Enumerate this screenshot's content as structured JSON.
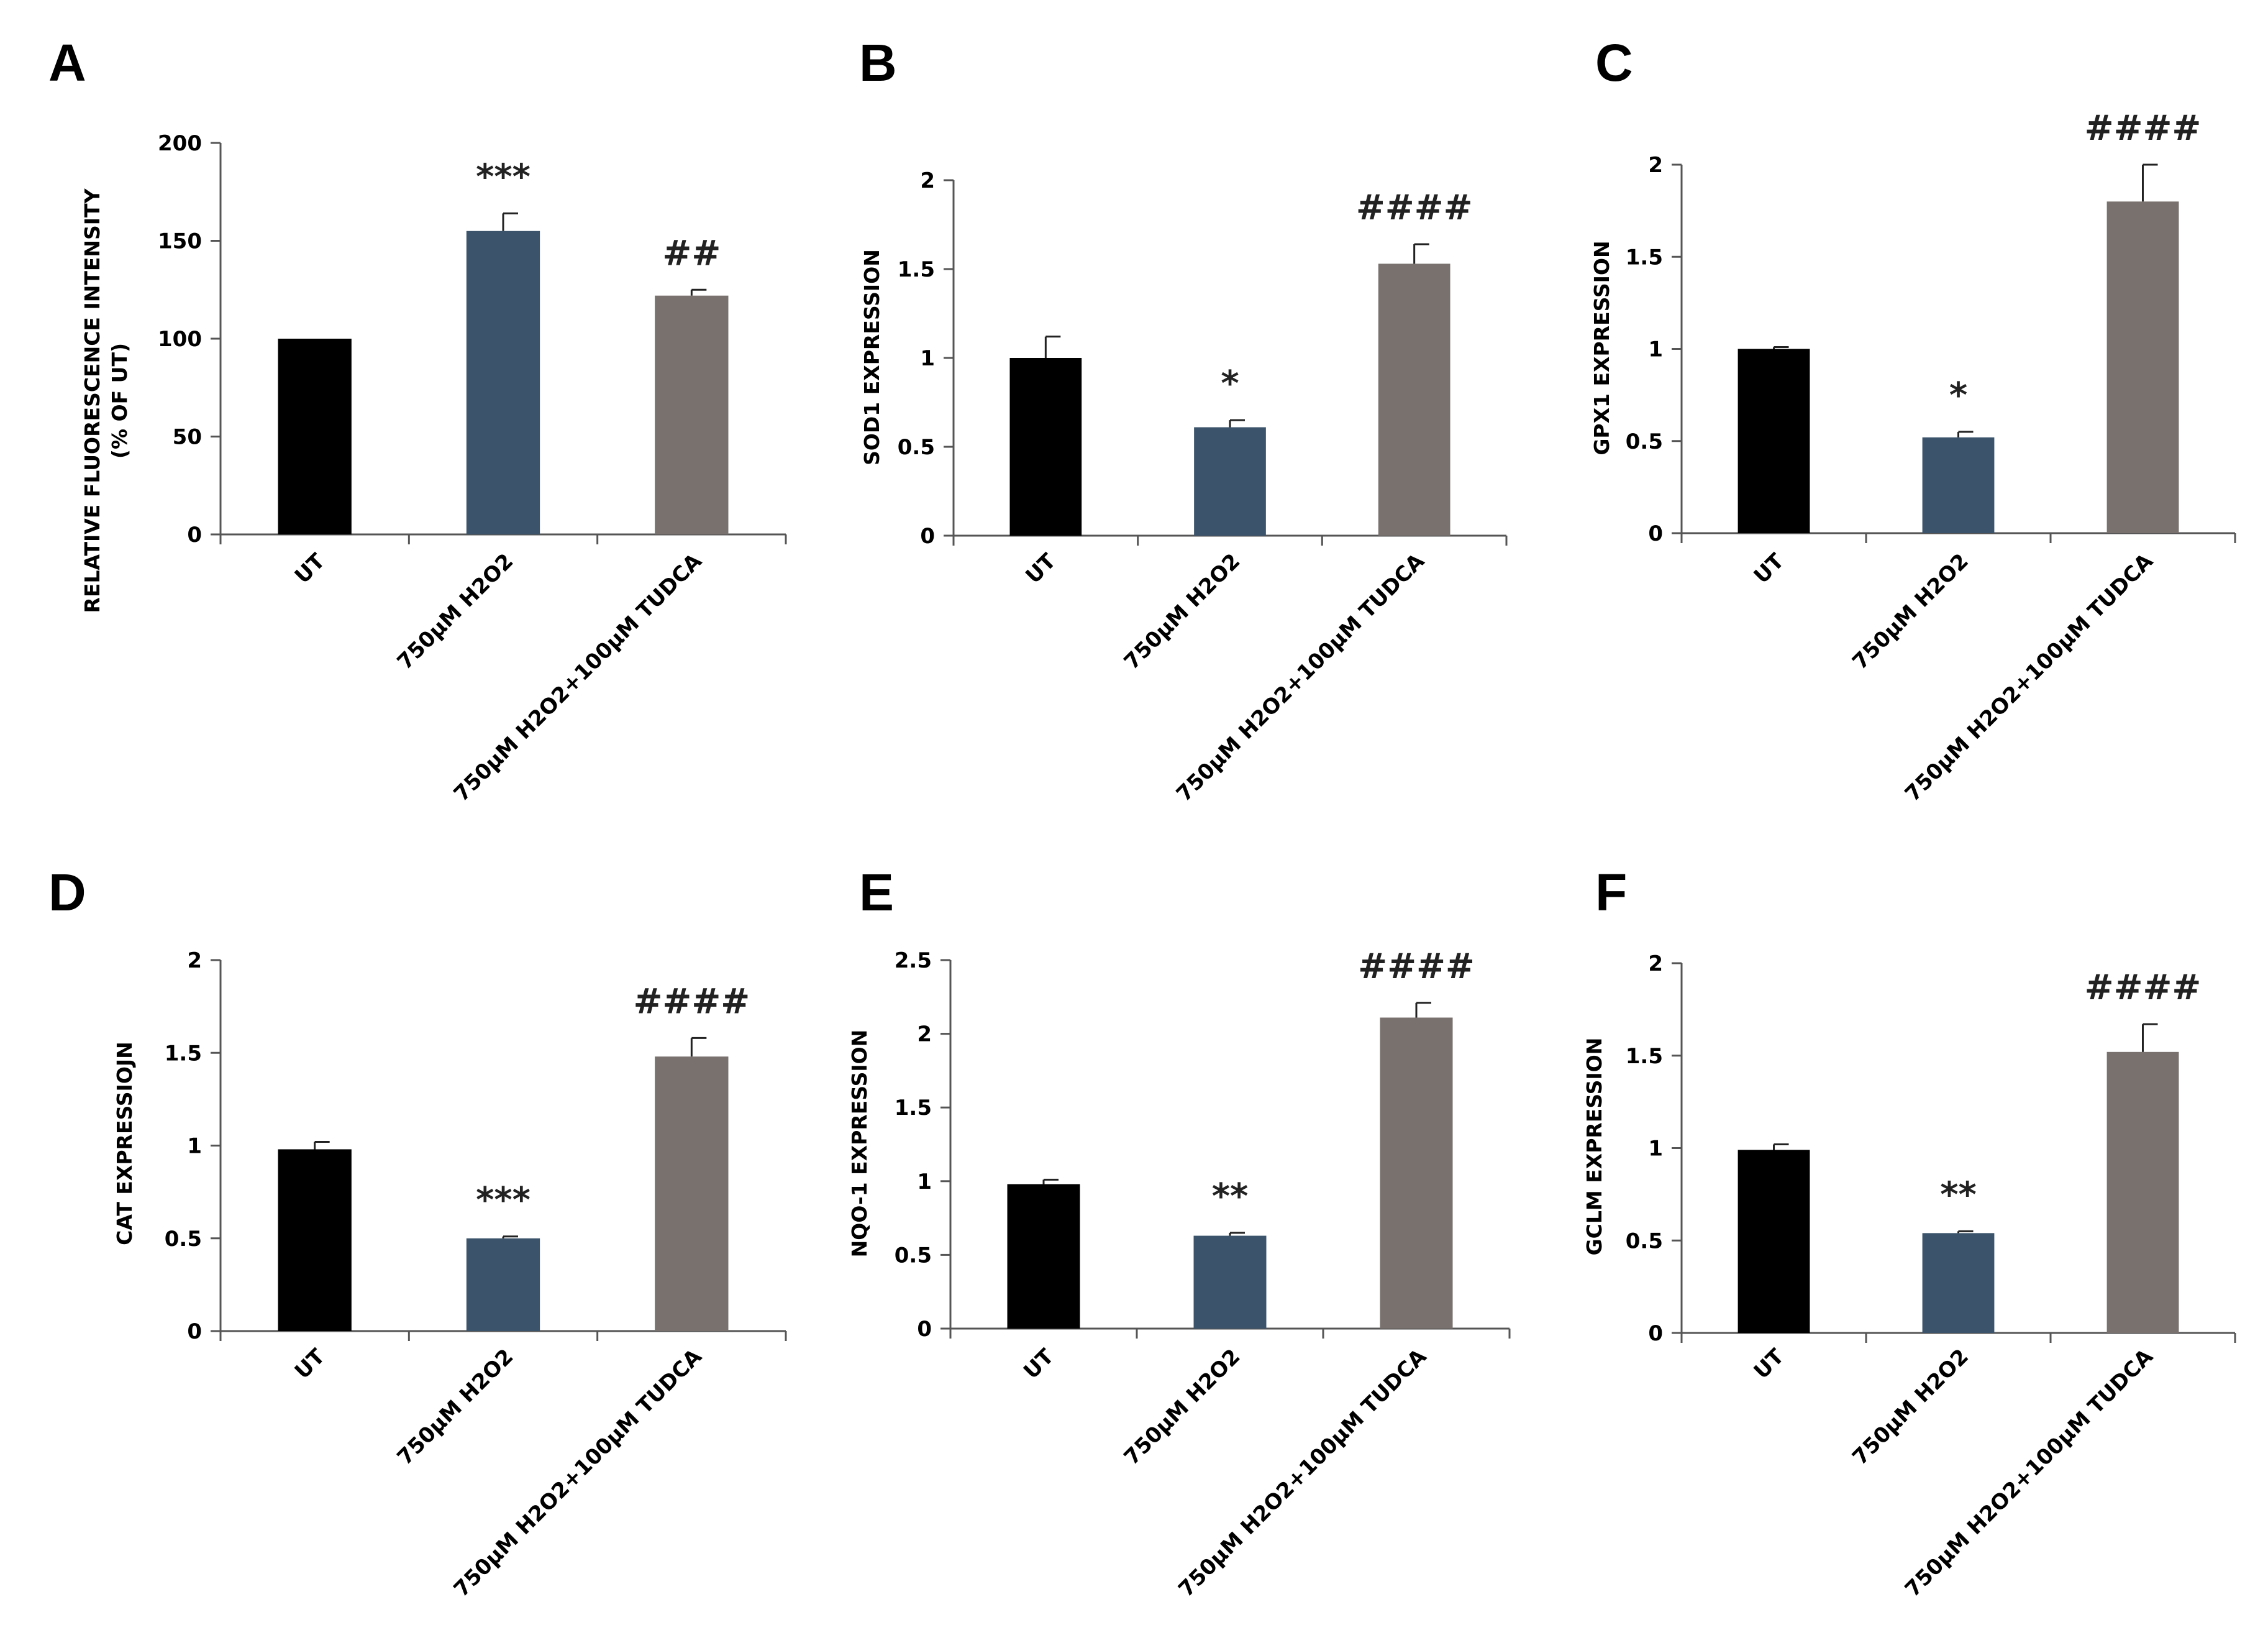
{
  "colors": {
    "UT": "#000000",
    "H2O2": "#3b546c",
    "H2O2_TUDCA": "#78716e"
  },
  "chart_data": [
    {
      "panel": "A",
      "type": "bar",
      "title": "",
      "xlabel": "",
      "ylabel": [
        "RELATIVE FLUORESCENCE INTENSITY",
        "(% OF UT)"
      ],
      "categories": [
        "UT",
        "750µM H2O2",
        "750µM H2O2+100µM TUDCA"
      ],
      "values": [
        100,
        155,
        122
      ],
      "errors": [
        0,
        9,
        3
      ],
      "significance": [
        "",
        "***",
        "##"
      ],
      "ylim": [
        0,
        200
      ],
      "yticks": [
        "0",
        "50",
        "100",
        "150",
        "200"
      ]
    },
    {
      "panel": "B",
      "type": "bar",
      "title": "",
      "xlabel": "",
      "ylabel": [
        "SOD1 EXPRESSION"
      ],
      "categories": [
        "UT",
        "750µM H2O2",
        "750µM H2O2+100µM TUDCA"
      ],
      "values": [
        1.0,
        0.61,
        1.53
      ],
      "errors": [
        0.12,
        0.04,
        0.11
      ],
      "significance": [
        "",
        "*",
        "####"
      ],
      "ylim": [
        0,
        2
      ],
      "yticks": [
        "0",
        "0.5",
        "1",
        "1.5",
        "2"
      ]
    },
    {
      "panel": "C",
      "type": "bar",
      "title": "",
      "xlabel": "",
      "ylabel": [
        "GPX1 EXPRESSION"
      ],
      "categories": [
        "UT",
        "750µM H2O2",
        "750µM H2O2+100µM TUDCA"
      ],
      "values": [
        1.0,
        0.52,
        1.8
      ],
      "errors": [
        0.01,
        0.03,
        0.2
      ],
      "significance": [
        "",
        "*",
        "####"
      ],
      "ylim": [
        0,
        2
      ],
      "yticks": [
        "0",
        "0.5",
        "1",
        "1.5",
        "2"
      ]
    },
    {
      "panel": "D",
      "type": "bar",
      "title": "",
      "xlabel": "",
      "ylabel": [
        "CAT EXPRESSIOJN"
      ],
      "categories": [
        "UT",
        "750µM H2O2",
        "750µM H2O2+100µM TUDCA"
      ],
      "values": [
        0.98,
        0.5,
        1.48
      ],
      "errors": [
        0.04,
        0.01,
        0.1
      ],
      "significance": [
        "",
        "***",
        "####"
      ],
      "ylim": [
        0,
        2
      ],
      "yticks": [
        "0",
        "0.5",
        "1",
        "1.5",
        "2"
      ]
    },
    {
      "panel": "E",
      "type": "bar",
      "title": "",
      "xlabel": "",
      "ylabel": [
        "NQO-1 EXPRESSION"
      ],
      "categories": [
        "UT",
        "750µM H2O2",
        "750µM H2O2+100µM TUDCA"
      ],
      "values": [
        0.98,
        0.63,
        2.11
      ],
      "errors": [
        0.03,
        0.02,
        0.1
      ],
      "significance": [
        "",
        "**",
        "####"
      ],
      "ylim": [
        0,
        2.5
      ],
      "yticks": [
        "0",
        "0.5",
        "1",
        "1.5",
        "2",
        "2.5"
      ]
    },
    {
      "panel": "F",
      "type": "bar",
      "title": "",
      "xlabel": "",
      "ylabel": [
        "GCLM EXPRESSION"
      ],
      "categories": [
        "UT",
        "750µM H2O2",
        "750µM H2O2+100µM TUDCA"
      ],
      "values": [
        0.99,
        0.54,
        1.52
      ],
      "errors": [
        0.03,
        0.01,
        0.15
      ],
      "significance": [
        "",
        "**",
        "####"
      ],
      "ylim": [
        0,
        2
      ],
      "yticks": [
        "0",
        "0.5",
        "1",
        "1.5",
        "2"
      ]
    }
  ]
}
